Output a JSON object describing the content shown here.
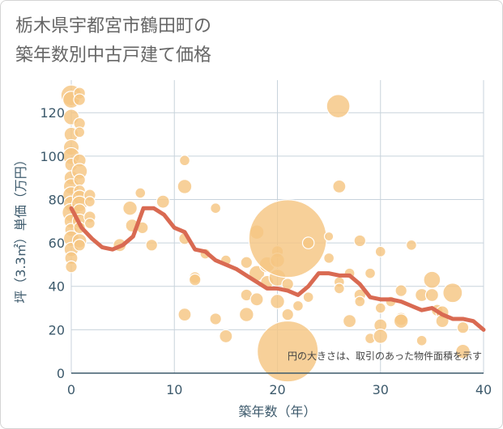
{
  "title_line1": "栃木県宇都宮市鶴田町の",
  "title_line2": "築年数別中古戸建て価格",
  "chart_data": {
    "type": "scatter",
    "xlabel": "築年数（年）",
    "ylabel": "坪（3.3㎡）単価（万円）",
    "xlim": [
      0,
      40
    ],
    "ylim": [
      0,
      135
    ],
    "x_ticks": [
      "0",
      "10",
      "20",
      "30",
      "40"
    ],
    "y_ticks": [
      "0",
      "20",
      "40",
      "60",
      "80",
      "100",
      "120"
    ],
    "grid": true,
    "note": "円の大きさは、取引のあった物件面積を示す",
    "colors": {
      "bubble": "#f5c682",
      "line": "#d96a52",
      "grid": "#c8d3dc",
      "axis": "#3d5a6c"
    },
    "bubbles": [
      {
        "x": 0,
        "y": 128,
        "s": 1.6
      },
      {
        "x": 0,
        "y": 126,
        "s": 1.3
      },
      {
        "x": 0,
        "y": 118,
        "s": 1.2
      },
      {
        "x": 0,
        "y": 110,
        "s": 1.1
      },
      {
        "x": 0,
        "y": 104,
        "s": 1.2
      },
      {
        "x": 0,
        "y": 100,
        "s": 1.3
      },
      {
        "x": 0,
        "y": 96,
        "s": 1.0
      },
      {
        "x": 0,
        "y": 90,
        "s": 1.1
      },
      {
        "x": 0,
        "y": 86,
        "s": 1.2
      },
      {
        "x": 0,
        "y": 82,
        "s": 1.3
      },
      {
        "x": 0,
        "y": 78,
        "s": 1.2
      },
      {
        "x": 0,
        "y": 74,
        "s": 1.4
      },
      {
        "x": 0,
        "y": 70,
        "s": 1.1
      },
      {
        "x": 0,
        "y": 66,
        "s": 1.0
      },
      {
        "x": 0,
        "y": 62,
        "s": 1.2
      },
      {
        "x": 0,
        "y": 57,
        "s": 1.1
      },
      {
        "x": 0,
        "y": 53,
        "s": 1.0
      },
      {
        "x": 0,
        "y": 49,
        "s": 0.9
      },
      {
        "x": 0.8,
        "y": 129,
        "s": 0.9
      },
      {
        "x": 0.8,
        "y": 126,
        "s": 0.9
      },
      {
        "x": 0.8,
        "y": 115,
        "s": 0.9
      },
      {
        "x": 0.8,
        "y": 111,
        "s": 0.8
      },
      {
        "x": 0.8,
        "y": 98,
        "s": 1.0
      },
      {
        "x": 0.8,
        "y": 93,
        "s": 1.2
      },
      {
        "x": 0.8,
        "y": 89,
        "s": 0.9
      },
      {
        "x": 0.8,
        "y": 84,
        "s": 0.9
      },
      {
        "x": 0.8,
        "y": 81,
        "s": 1.1
      },
      {
        "x": 0.8,
        "y": 78,
        "s": 1.2
      },
      {
        "x": 0.8,
        "y": 75,
        "s": 1.0
      },
      {
        "x": 0.8,
        "y": 70,
        "s": 1.1
      },
      {
        "x": 0.8,
        "y": 67,
        "s": 0.9
      },
      {
        "x": 0.8,
        "y": 61,
        "s": 1.1
      },
      {
        "x": 0.8,
        "y": 59,
        "s": 0.9
      },
      {
        "x": 1.8,
        "y": 82,
        "s": 0.9
      },
      {
        "x": 1.8,
        "y": 79,
        "s": 0.8
      },
      {
        "x": 1.8,
        "y": 72,
        "s": 0.9
      },
      {
        "x": 1.8,
        "y": 69,
        "s": 0.8
      },
      {
        "x": 4.7,
        "y": 59,
        "s": 1.0
      },
      {
        "x": 5.7,
        "y": 76,
        "s": 1.1
      },
      {
        "x": 5.9,
        "y": 68,
        "s": 1.0
      },
      {
        "x": 6.7,
        "y": 83,
        "s": 0.8
      },
      {
        "x": 6.9,
        "y": 67,
        "s": 0.9
      },
      {
        "x": 7.8,
        "y": 59,
        "s": 0.9
      },
      {
        "x": 8.9,
        "y": 79,
        "s": 1.0
      },
      {
        "x": 11,
        "y": 98,
        "s": 0.8
      },
      {
        "x": 11,
        "y": 86,
        "s": 1.1
      },
      {
        "x": 11,
        "y": 62,
        "s": 0.9
      },
      {
        "x": 11,
        "y": 27,
        "s": 1.0
      },
      {
        "x": 12,
        "y": 44,
        "s": 0.9
      },
      {
        "x": 12,
        "y": 43,
        "s": 0.9
      },
      {
        "x": 13,
        "y": 55,
        "s": 0.8
      },
      {
        "x": 14,
        "y": 76,
        "s": 0.8
      },
      {
        "x": 14,
        "y": 25,
        "s": 0.9
      },
      {
        "x": 15,
        "y": 52,
        "s": 0.8
      },
      {
        "x": 15,
        "y": 17,
        "s": 1.0
      },
      {
        "x": 17,
        "y": 51,
        "s": 0.9
      },
      {
        "x": 17,
        "y": 36,
        "s": 0.9
      },
      {
        "x": 17,
        "y": 27,
        "s": 1.1
      },
      {
        "x": 18,
        "y": 65,
        "s": 1.1
      },
      {
        "x": 18,
        "y": 46,
        "s": 1.2
      },
      {
        "x": 18,
        "y": 34,
        "s": 1.0
      },
      {
        "x": 19,
        "y": 50,
        "s": 1.2
      },
      {
        "x": 19,
        "y": 42,
        "s": 1.0
      },
      {
        "x": 20,
        "y": 56,
        "s": 0.9
      },
      {
        "x": 20,
        "y": 52,
        "s": 1.1
      },
      {
        "x": 20,
        "y": 44,
        "s": 1.3
      },
      {
        "x": 20,
        "y": 33,
        "s": 1.1
      },
      {
        "x": 21,
        "y": 62,
        "s": 6.0
      },
      {
        "x": 21,
        "y": 41,
        "s": 0.9
      },
      {
        "x": 21,
        "y": 27,
        "s": 0.9
      },
      {
        "x": 22,
        "y": 31,
        "s": 0.8
      },
      {
        "x": 23,
        "y": 60,
        "s": 0.9
      },
      {
        "x": 23,
        "y": 35,
        "s": 0.8
      },
      {
        "x": 25,
        "y": 63,
        "s": 0.7
      },
      {
        "x": 25,
        "y": 53,
        "s": 0.8
      },
      {
        "x": 25.9,
        "y": 123,
        "s": 1.8
      },
      {
        "x": 26,
        "y": 86,
        "s": 1.0
      },
      {
        "x": 26,
        "y": 42,
        "s": 0.8
      },
      {
        "x": 26,
        "y": 39,
        "s": 0.8
      },
      {
        "x": 27,
        "y": 46,
        "s": 0.8
      },
      {
        "x": 27,
        "y": 24,
        "s": 1.0
      },
      {
        "x": 28,
        "y": 61,
        "s": 0.9
      },
      {
        "x": 28,
        "y": 36,
        "s": 0.9
      },
      {
        "x": 28,
        "y": 33,
        "s": 0.8
      },
      {
        "x": 29,
        "y": 46,
        "s": 0.8
      },
      {
        "x": 29,
        "y": 16,
        "s": 0.8
      },
      {
        "x": 30,
        "y": 56,
        "s": 0.8
      },
      {
        "x": 30,
        "y": 30,
        "s": 0.8
      },
      {
        "x": 30,
        "y": 22,
        "s": 1.0
      },
      {
        "x": 30,
        "y": 17,
        "s": 1.1
      },
      {
        "x": 31,
        "y": 33,
        "s": 0.8
      },
      {
        "x": 32,
        "y": 38,
        "s": 0.9
      },
      {
        "x": 32,
        "y": 25,
        "s": 1.0
      },
      {
        "x": 32,
        "y": 24,
        "s": 1.1
      },
      {
        "x": 33,
        "y": 59,
        "s": 0.8
      },
      {
        "x": 34,
        "y": 36,
        "s": 1.0
      },
      {
        "x": 34,
        "y": 15,
        "s": 0.8
      },
      {
        "x": 35,
        "y": 43,
        "s": 1.3
      },
      {
        "x": 35,
        "y": 36,
        "s": 1.0
      },
      {
        "x": 35.5,
        "y": 29,
        "s": 0.9
      },
      {
        "x": 36,
        "y": 28,
        "s": 1.0
      },
      {
        "x": 36,
        "y": 24,
        "s": 1.0
      },
      {
        "x": 37,
        "y": 37,
        "s": 1.5
      },
      {
        "x": 38,
        "y": 21,
        "s": 0.9
      },
      {
        "x": 38,
        "y": 10,
        "s": 1.1
      },
      {
        "x": 21,
        "y": 10,
        "s": 4.7
      }
    ],
    "trend": {
      "x": [
        0,
        1,
        2,
        3,
        4,
        5,
        6,
        7,
        8,
        9,
        10,
        11,
        12,
        13,
        14,
        15,
        16,
        17,
        18,
        19,
        20,
        21,
        22,
        23,
        24,
        25,
        26,
        27,
        28,
        29,
        30,
        31,
        32,
        33,
        34,
        35,
        36,
        37,
        38,
        39,
        40
      ],
      "y": [
        76,
        67,
        62,
        58,
        57,
        59,
        63,
        76,
        76,
        73,
        67,
        65,
        57,
        56,
        52,
        50,
        48,
        45,
        42,
        39,
        39,
        38,
        36,
        40,
        46,
        46,
        45,
        45,
        41,
        35,
        34,
        34,
        33,
        31,
        29,
        30,
        27,
        25,
        25,
        24,
        20
      ]
    }
  }
}
